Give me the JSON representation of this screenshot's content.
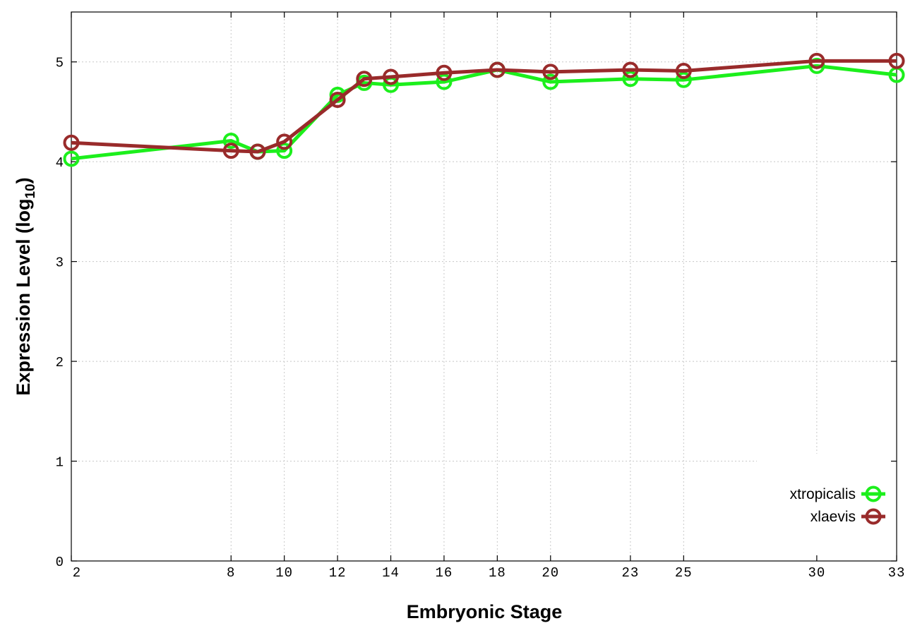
{
  "chart_data": {
    "type": "line",
    "xlabel": "Embryonic Stage",
    "ylabel": "Expression Level (log",
    "ylabel_subscript": "10",
    "ylabel_suffix": ")",
    "x_ticks": [
      2,
      8,
      10,
      12,
      14,
      16,
      18,
      20,
      23,
      25,
      30,
      33
    ],
    "y_ticks": [
      0,
      1,
      2,
      3,
      4,
      5
    ],
    "xlim": [
      2,
      33
    ],
    "ylim": [
      0,
      5.5
    ],
    "grid": true,
    "legend_position": "bottom-right",
    "x": [
      2,
      8,
      9,
      10,
      12,
      13,
      14,
      16,
      18,
      20,
      23,
      25,
      30,
      33
    ],
    "series": [
      {
        "name": "xtropicalis",
        "color": "#1cef1c",
        "values": [
          4.03,
          4.21,
          4.1,
          4.11,
          4.67,
          4.79,
          4.77,
          4.8,
          4.92,
          4.8,
          4.83,
          4.82,
          4.96,
          4.87
        ]
      },
      {
        "name": "xlaevis",
        "color": "#992b2b",
        "values": [
          4.19,
          4.11,
          4.1,
          4.2,
          4.62,
          4.83,
          4.85,
          4.89,
          4.92,
          4.9,
          4.92,
          4.91,
          5.01,
          5.01
        ]
      }
    ]
  }
}
